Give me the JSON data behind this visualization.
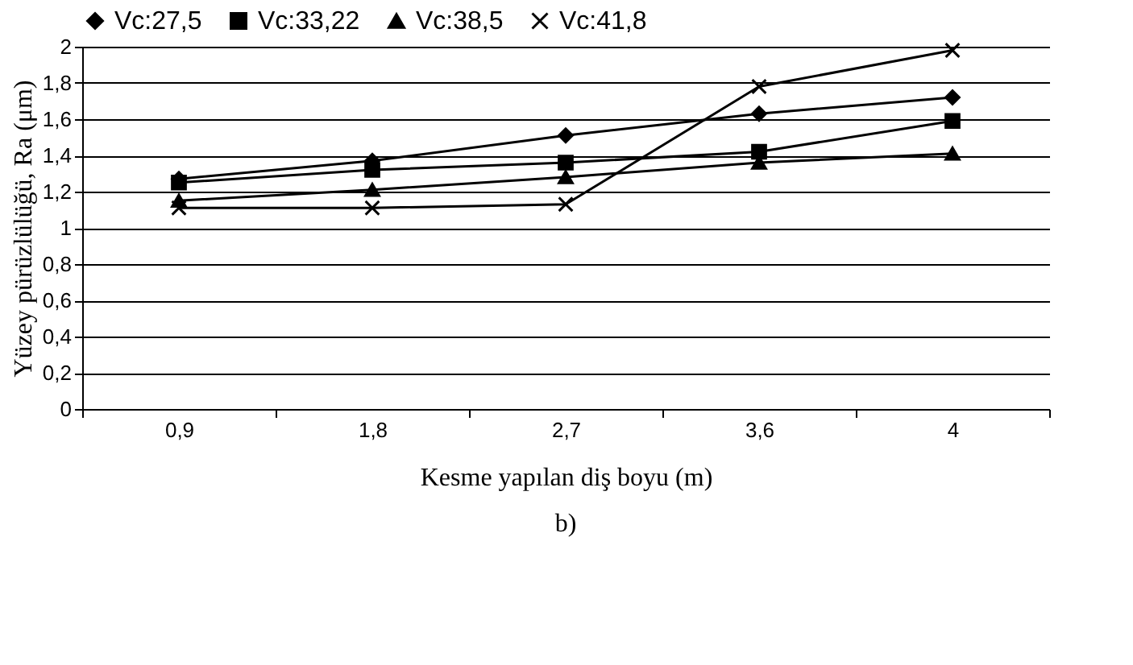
{
  "chart_data": {
    "type": "line",
    "xlabel": "Kesme yapılan diş boyu (m)",
    "ylabel": "Yüzey pürüzlülüğü, Ra (μm)",
    "categories": [
      "0,9",
      "1,8",
      "2,7",
      "3,6",
      "4"
    ],
    "series": [
      {
        "name": "Vc:27,5",
        "color": "#000000",
        "marker": "diamond",
        "values": [
          1.27,
          1.37,
          1.51,
          1.63,
          1.72
        ]
      },
      {
        "name": "Vc:33,22",
        "color": "#000000",
        "marker": "square",
        "values": [
          1.25,
          1.32,
          1.36,
          1.42,
          1.59
        ]
      },
      {
        "name": "Vc:38,5",
        "color": "#000000",
        "marker": "triangle",
        "values": [
          1.15,
          1.21,
          1.28,
          1.36,
          1.41
        ]
      },
      {
        "name": "Vc:41,8",
        "color": "#000000",
        "marker": "cross",
        "values": [
          1.11,
          1.11,
          1.13,
          1.78,
          1.98
        ]
      }
    ],
    "ylim": [
      0,
      2
    ],
    "yticks": [
      0,
      {
        "value": 0.2,
        "label": "0,2"
      },
      {
        "value": 0.4,
        "label": "0,4"
      },
      {
        "value": 0.6,
        "label": "0,6"
      },
      {
        "value": 0.8,
        "label": "0,8"
      },
      1,
      {
        "value": 1.2,
        "label": "1,2"
      },
      {
        "value": 1.4,
        "label": "1,4"
      },
      {
        "value": 1.6,
        "label": "1,6"
      },
      {
        "value": 1.8,
        "label": "1,8"
      },
      2
    ],
    "grid": "y",
    "legend": "top",
    "line_style": "solid",
    "annotations": [
      "b)"
    ]
  }
}
